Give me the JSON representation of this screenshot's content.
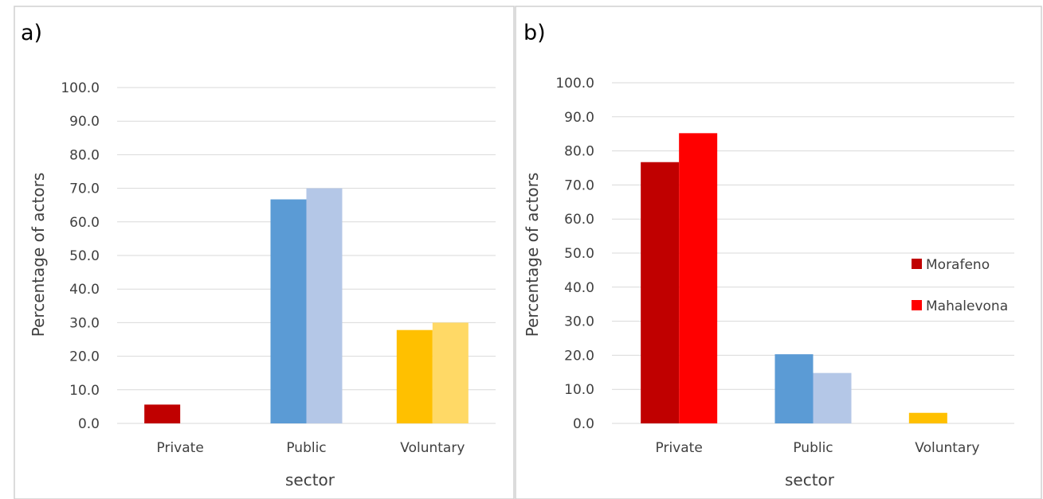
{
  "chart_data": [
    {
      "panel_label": "a)",
      "type": "bar",
      "categories": [
        "Private",
        "Public",
        "Voluntary"
      ],
      "ylabel": "Percentage of actors",
      "xlabel": "sector",
      "ylim": [
        0,
        100
      ],
      "ytick_labels": [
        "0.0",
        "10.0",
        "20.0",
        "30.0",
        "40.0",
        "50.0",
        "60.0",
        "70.0",
        "80.0",
        "90.0",
        "100.0"
      ],
      "grid": true,
      "series": [
        {
          "values": [
            5.6,
            66.7,
            27.8
          ],
          "colors": [
            "#C00000",
            "#5B9BD5",
            "#FFC000"
          ]
        },
        {
          "values": [
            0,
            70.0,
            30.0
          ],
          "colors": [
            "#FF0000",
            "#B4C7E7",
            "#FFD966"
          ]
        }
      ]
    },
    {
      "panel_label": "b)",
      "type": "bar",
      "categories": [
        "Private",
        "Public",
        "Voluntary"
      ],
      "ylabel": "Percentage of actors",
      "xlabel": "sector",
      "ylim": [
        0,
        100
      ],
      "ytick_labels": [
        "0.0",
        "10.0",
        "20.0",
        "30.0",
        "40.0",
        "50.0",
        "60.0",
        "70.0",
        "80.0",
        "90.0",
        "100.0"
      ],
      "grid": true,
      "legend_position": "right",
      "series": [
        {
          "name": "Morafeno",
          "values": [
            76.7,
            20.3,
            3.1
          ],
          "colors": [
            "#C00000",
            "#5B9BD5",
            "#FFC000"
          ]
        },
        {
          "name": "Mahalevona",
          "values": [
            85.2,
            14.8,
            0
          ],
          "colors": [
            "#FF0000",
            "#B4C7E7",
            "#FFD966"
          ]
        }
      ]
    }
  ]
}
